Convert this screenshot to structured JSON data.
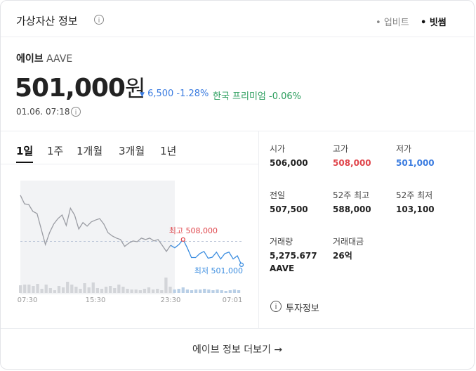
{
  "header": {
    "title": "가상자산 정보",
    "exchanges": [
      "업비트",
      "빗썸"
    ]
  },
  "asset": {
    "name": "에이브",
    "symbol": "AAVE",
    "price": "501,000",
    "price_unit": "원",
    "change": "6,500",
    "change_rate": "-1.28%",
    "premium_label": "한국 프리미엄",
    "premium": "-0.06%",
    "time": "01.06. 07:18"
  },
  "periods": [
    "1일",
    "1주",
    "1개월",
    "3개월",
    "1년"
  ],
  "chart": {
    "type": "line",
    "series": [
      {
        "name": "past",
        "color": "#9a9ca3",
        "values": [
          520300,
          517900,
          517700,
          515800,
          515200,
          510900,
          506600,
          509900,
          512300,
          513800,
          514800,
          511900,
          516700,
          514800,
          510900,
          512700,
          511700,
          512900,
          513400,
          513800,
          512300,
          509900,
          509000,
          508400,
          508000,
          506100,
          507000,
          507600,
          507400,
          508400,
          508000,
          508400,
          507600,
          508000,
          506400,
          504700,
          506400,
          null,
          null,
          null,
          null,
          null,
          null,
          null,
          null,
          null,
          null,
          null,
          null,
          null,
          null,
          null,
          null,
          null
        ]
      },
      {
        "name": "recent",
        "color": "#3b8de0",
        "values": [
          null,
          null,
          null,
          null,
          null,
          null,
          null,
          null,
          null,
          null,
          null,
          null,
          null,
          null,
          null,
          null,
          null,
          null,
          null,
          null,
          null,
          null,
          null,
          null,
          null,
          null,
          null,
          null,
          null,
          null,
          null,
          null,
          null,
          null,
          null,
          null,
          506400,
          505700,
          506600,
          508000,
          505700,
          503000,
          503000,
          504100,
          504700,
          502800,
          503100,
          504500,
          502600,
          504100,
          504500,
          502600,
          503500,
          501000
        ]
      }
    ],
    "ylim": [
      499400,
      522600
    ],
    "baseline": 507500,
    "high_label": "최고 508,000",
    "low_label": "최저 501,000",
    "volumes": [
      11,
      12,
      12,
      10,
      13,
      6,
      12,
      7,
      4,
      10,
      8,
      16,
      12,
      9,
      6,
      14,
      8,
      15,
      7,
      6,
      9,
      10,
      7,
      12,
      9,
      6,
      5,
      5,
      4,
      6,
      8,
      5,
      6,
      4,
      22,
      9,
      5,
      6,
      8,
      5,
      4,
      5,
      5,
      6,
      5,
      4,
      5,
      4,
      3,
      4,
      5,
      4
    ],
    "x_labels": [
      "07:30",
      "15:30",
      "23:30",
      "07:01"
    ]
  },
  "stats": [
    [
      {
        "label": "시가",
        "value": "506,000"
      },
      {
        "label": "고가",
        "value": "508,000"
      },
      {
        "label": "저가",
        "value": "501,000"
      }
    ],
    [
      {
        "label": "전일",
        "value": "507,500"
      },
      {
        "label": "52주 최고",
        "value": "588,000"
      },
      {
        "label": "52주 최저",
        "value": "103,100"
      }
    ],
    [
      {
        "label": "거래량",
        "value": "5,275.677 AAVE"
      },
      {
        "label": "거래대금",
        "value": "26억"
      }
    ]
  ],
  "invest_info": "투자정보",
  "footer": "에이브 정보 더보기 →"
}
